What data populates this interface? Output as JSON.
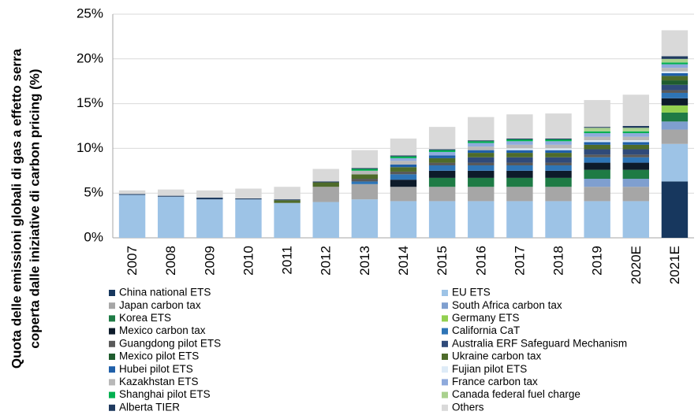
{
  "chart_data": {
    "type": "stacked_bar",
    "ylabel": [
      "Quota delle emissioni globali di gas a effetto serra",
      "coperta dalle iniziative di carbon pricing (%)"
    ],
    "categories": [
      "2007",
      "2008",
      "2009",
      "2010",
      "2011",
      "2012",
      "2013",
      "2014",
      "2015",
      "2016",
      "2017",
      "2018",
      "2019",
      "2020E",
      "2021E"
    ],
    "ylim": [
      0,
      25
    ],
    "yticks": [
      {
        "value": 0,
        "label": "0%"
      },
      {
        "value": 5,
        "label": "5%"
      },
      {
        "value": 10,
        "label": "10%"
      },
      {
        "value": 15,
        "label": "15%"
      },
      {
        "value": 20,
        "label": "20%"
      },
      {
        "value": 25,
        "label": "25%"
      }
    ],
    "grid": true,
    "series": [
      {
        "name": "China national ETS",
        "color": "#17375e",
        "values": [
          0,
          0,
          0,
          0,
          0,
          0,
          0,
          0,
          0,
          0,
          0,
          0,
          0,
          0,
          6.3
        ]
      },
      {
        "name": "EU ETS",
        "color": "#9dc3e6",
        "values": [
          4.8,
          4.6,
          4.3,
          4.3,
          3.9,
          4.0,
          4.3,
          4.1,
          4.1,
          4.1,
          4.1,
          4.1,
          4.1,
          4.1,
          4.2
        ]
      },
      {
        "name": "Japan carbon tax",
        "color": "#a6a6a6",
        "values": [
          0,
          0,
          0,
          0,
          0,
          1.7,
          1.7,
          1.6,
          1.6,
          1.6,
          1.6,
          1.6,
          1.6,
          1.6,
          1.6
        ]
      },
      {
        "name": "South Africa carbon tax",
        "color": "#7f9fcf",
        "values": [
          0,
          0,
          0,
          0,
          0,
          0,
          0,
          0,
          0,
          0,
          0,
          0,
          0.9,
          0.9,
          0.9
        ]
      },
      {
        "name": "Korea ETS",
        "color": "#1e7b45",
        "values": [
          0,
          0,
          0,
          0,
          0,
          0,
          0,
          0,
          1.0,
          1.0,
          1.0,
          1.0,
          1.0,
          1.0,
          1.0
        ]
      },
      {
        "name": "Germany ETS",
        "color": "#92d050",
        "values": [
          0,
          0,
          0,
          0,
          0,
          0,
          0,
          0,
          0,
          0,
          0,
          0,
          0,
          0,
          0.8
        ]
      },
      {
        "name": "Mexico carbon tax",
        "color": "#0d1b2a",
        "values": [
          0,
          0,
          0,
          0,
          0,
          0,
          0,
          0.8,
          0.8,
          0.8,
          0.8,
          0.8,
          0.8,
          0.8,
          0.8
        ]
      },
      {
        "name": "California CaT",
        "color": "#2e75b6",
        "values": [
          0,
          0,
          0,
          0,
          0,
          0,
          0.3,
          0.6,
          0.6,
          0.6,
          0.6,
          0.6,
          0.6,
          0.6,
          0.6
        ]
      },
      {
        "name": "Guangdong pilot ETS",
        "color": "#595959",
        "values": [
          0,
          0,
          0,
          0,
          0,
          0,
          0.3,
          0.3,
          0.3,
          0.3,
          0.3,
          0.3,
          0.3,
          0.3,
          0.3
        ]
      },
      {
        "name": "Australia ERF Safeguard Mechanism",
        "color": "#2f4a7a",
        "values": [
          0,
          0,
          0,
          0,
          0,
          0,
          0,
          0,
          0,
          0.6,
          0.6,
          0.6,
          0.6,
          0.6,
          0.6
        ]
      },
      {
        "name": "Mexico pilot ETS",
        "color": "#1f5c2e",
        "values": [
          0,
          0,
          0,
          0,
          0,
          0,
          0,
          0,
          0,
          0,
          0,
          0,
          0,
          0,
          0.5
        ]
      },
      {
        "name": "Ukraine carbon tax",
        "color": "#4e6b2a",
        "values": [
          0,
          0,
          0,
          0,
          0.3,
          0.5,
          0.5,
          0.5,
          0.5,
          0.5,
          0.5,
          0.5,
          0.5,
          0.5,
          0.5
        ]
      },
      {
        "name": "Hubei pilot ETS",
        "color": "#1f5fa8",
        "values": [
          0,
          0,
          0,
          0,
          0,
          0,
          0,
          0.3,
          0.3,
          0.3,
          0.3,
          0.3,
          0.3,
          0.3,
          0.3
        ]
      },
      {
        "name": "Fujian pilot ETS",
        "color": "#deebf7",
        "values": [
          0,
          0,
          0,
          0,
          0,
          0,
          0,
          0,
          0,
          0,
          0.2,
          0.2,
          0.2,
          0.2,
          0.2
        ]
      },
      {
        "name": "Kazakhstan ETS",
        "color": "#b8b8b8",
        "values": [
          0,
          0,
          0,
          0,
          0,
          0,
          0.4,
          0.4,
          0,
          0.4,
          0.4,
          0.4,
          0.4,
          0.4,
          0.4
        ]
      },
      {
        "name": "France carbon tax",
        "color": "#8faadc",
        "values": [
          0,
          0,
          0,
          0,
          0,
          0,
          0,
          0.3,
          0.4,
          0.4,
          0.4,
          0.4,
          0.4,
          0.4,
          0.4
        ]
      },
      {
        "name": "Shanghai pilot ETS",
        "color": "#00b050",
        "values": [
          0,
          0,
          0,
          0,
          0,
          0,
          0.2,
          0.2,
          0.2,
          0.2,
          0.2,
          0.2,
          0.2,
          0.2,
          0.2
        ]
      },
      {
        "name": "Canada federal fuel charge",
        "color": "#a9d18e",
        "values": [
          0,
          0,
          0,
          0,
          0,
          0,
          0,
          0,
          0,
          0,
          0,
          0,
          0.4,
          0.4,
          0.4
        ]
      },
      {
        "name": "Alberta TIER",
        "color": "#1f3a5f",
        "values": [
          0.1,
          0.1,
          0.2,
          0.1,
          0.1,
          0.1,
          0.1,
          0.1,
          0.1,
          0.1,
          0.1,
          0.1,
          0.1,
          0.2,
          0.3
        ]
      },
      {
        "name": "Others",
        "color": "#d9d9d9",
        "values": [
          0.4,
          0.7,
          0.8,
          1.1,
          1.4,
          1.4,
          2.0,
          1.9,
          2.5,
          2.6,
          2.7,
          2.8,
          3.0,
          3.5,
          2.9
        ]
      }
    ]
  }
}
